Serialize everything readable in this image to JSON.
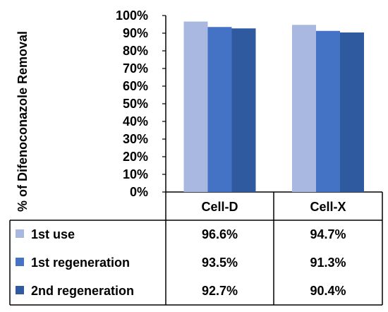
{
  "chart_data": {
    "type": "bar",
    "ylabel": "% of Difenoconazole Removal",
    "categories": [
      "Cell-D",
      "Cell-X"
    ],
    "ylim": [
      0,
      100
    ],
    "ytick_step": 10,
    "y_unit": "%",
    "grid": false,
    "legend_placement": "data-table",
    "series": [
      {
        "name": "1st use",
        "color": "#a9b8e0",
        "values": [
          96.6,
          94.7
        ],
        "labels": [
          "96.6%",
          "94.7%"
        ]
      },
      {
        "name": "1st regeneration",
        "color": "#4472c4",
        "values": [
          93.5,
          91.3
        ],
        "labels": [
          "93.5%",
          "91.3%"
        ]
      },
      {
        "name": "2nd regeneration",
        "color": "#2f5aa0",
        "values": [
          92.7,
          90.4
        ],
        "labels": [
          "92.7%",
          "90.4%"
        ]
      }
    ]
  }
}
